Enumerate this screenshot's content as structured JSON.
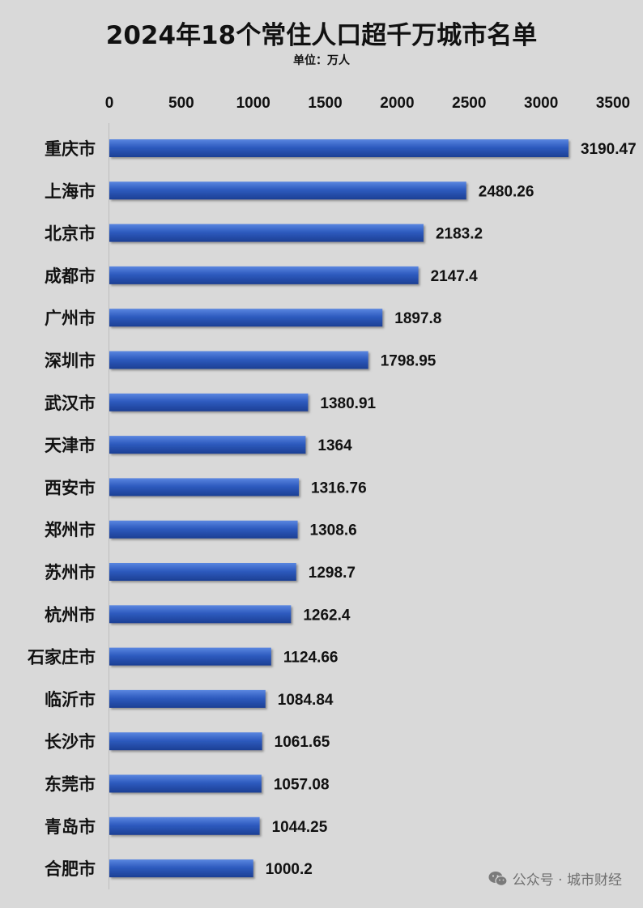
{
  "chart_data": {
    "type": "bar",
    "orientation": "horizontal",
    "title": "2024年18个常住人口超千万城市名单",
    "subtitle": "单位：万人",
    "categories": [
      "重庆市",
      "上海市",
      "北京市",
      "成都市",
      "广州市",
      "深圳市",
      "武汉市",
      "天津市",
      "西安市",
      "郑州市",
      "苏州市",
      "杭州市",
      "石家庄市",
      "临沂市",
      "长沙市",
      "东莞市",
      "青岛市",
      "合肥市"
    ],
    "values": [
      3190.47,
      2480.26,
      2183.2,
      2147.4,
      1897.8,
      1798.95,
      1380.91,
      1364,
      1316.76,
      1308.6,
      1298.7,
      1262.4,
      1124.66,
      1084.84,
      1061.65,
      1057.08,
      1044.25,
      1000.2
    ],
    "value_labels": [
      "3190.47",
      "2480.26",
      "2183.2",
      "2147.4",
      "1897.8",
      "1798.95",
      "1380.91",
      "1364",
      "1316.76",
      "1308.6",
      "1298.7",
      "1262.4",
      "1124.66",
      "1084.84",
      "1061.65",
      "1057.08",
      "1044.25",
      "1000.2"
    ],
    "xlim": [
      0,
      3500
    ],
    "xticks": [
      0,
      500,
      1000,
      1500,
      2000,
      2500,
      3000,
      3500
    ],
    "x_axis_position": "top",
    "grid": false,
    "bar_color": "#2e5bbf"
  },
  "watermark": "公众号 · 城市财经",
  "watermark_icon": "wechat-icon"
}
